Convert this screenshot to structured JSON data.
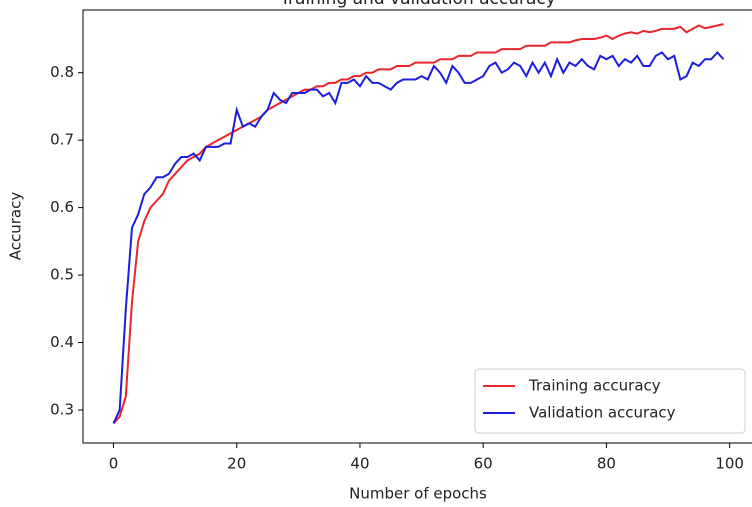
{
  "chart_data": {
    "type": "line",
    "title": "Training and validation accuracy",
    "x_label": "Number of epochs",
    "y_label": "Accuracy",
    "x": [
      0,
      1,
      2,
      3,
      4,
      5,
      6,
      7,
      8,
      9,
      10,
      11,
      12,
      13,
      14,
      15,
      16,
      17,
      18,
      19,
      20,
      21,
      22,
      23,
      24,
      25,
      26,
      27,
      28,
      29,
      30,
      31,
      32,
      33,
      34,
      35,
      36,
      37,
      38,
      39,
      40,
      41,
      42,
      43,
      44,
      45,
      46,
      47,
      48,
      49,
      50,
      51,
      52,
      53,
      54,
      55,
      56,
      57,
      58,
      59,
      60,
      61,
      62,
      63,
      64,
      65,
      66,
      67,
      68,
      69,
      70,
      71,
      72,
      73,
      74,
      75,
      76,
      77,
      78,
      79,
      80,
      81,
      82,
      83,
      84,
      85,
      86,
      87,
      88,
      89,
      90,
      91,
      92,
      93,
      94,
      95,
      96,
      97,
      98,
      99
    ],
    "series": [
      {
        "name": "Training accuracy",
        "color": "#e8262c",
        "values": [
          0.28,
          0.29,
          0.32,
          0.46,
          0.55,
          0.58,
          0.6,
          0.61,
          0.62,
          0.64,
          0.65,
          0.66,
          0.67,
          0.675,
          0.68,
          0.69,
          0.695,
          0.7,
          0.705,
          0.71,
          0.715,
          0.72,
          0.725,
          0.73,
          0.735,
          0.745,
          0.75,
          0.755,
          0.76,
          0.765,
          0.77,
          0.775,
          0.775,
          0.78,
          0.78,
          0.785,
          0.785,
          0.79,
          0.79,
          0.795,
          0.795,
          0.8,
          0.8,
          0.805,
          0.805,
          0.805,
          0.81,
          0.81,
          0.81,
          0.815,
          0.815,
          0.815,
          0.815,
          0.82,
          0.82,
          0.82,
          0.825,
          0.825,
          0.825,
          0.83,
          0.83,
          0.83,
          0.83,
          0.835,
          0.835,
          0.835,
          0.835,
          0.84,
          0.84,
          0.84,
          0.84,
          0.845,
          0.845,
          0.845,
          0.845,
          0.848,
          0.85,
          0.85,
          0.85,
          0.852,
          0.855,
          0.85,
          0.855,
          0.858,
          0.86,
          0.858,
          0.862,
          0.86,
          0.862,
          0.865,
          0.865,
          0.865,
          0.868,
          0.86,
          0.865,
          0.87,
          0.866,
          0.868,
          0.87,
          0.872
        ]
      },
      {
        "name": "Validation accuracy",
        "color": "#1d1ddb",
        "values": [
          0.28,
          0.3,
          0.45,
          0.57,
          0.59,
          0.62,
          0.63,
          0.645,
          0.645,
          0.65,
          0.665,
          0.675,
          0.675,
          0.68,
          0.67,
          0.69,
          0.69,
          0.69,
          0.695,
          0.695,
          0.745,
          0.72,
          0.725,
          0.72,
          0.735,
          0.745,
          0.77,
          0.76,
          0.755,
          0.77,
          0.77,
          0.77,
          0.775,
          0.775,
          0.765,
          0.77,
          0.755,
          0.785,
          0.785,
          0.79,
          0.78,
          0.795,
          0.785,
          0.785,
          0.78,
          0.775,
          0.785,
          0.79,
          0.79,
          0.79,
          0.795,
          0.79,
          0.81,
          0.8,
          0.785,
          0.81,
          0.8,
          0.785,
          0.785,
          0.79,
          0.795,
          0.81,
          0.815,
          0.8,
          0.805,
          0.815,
          0.81,
          0.795,
          0.815,
          0.8,
          0.815,
          0.795,
          0.82,
          0.8,
          0.815,
          0.81,
          0.82,
          0.81,
          0.805,
          0.825,
          0.82,
          0.825,
          0.81,
          0.82,
          0.815,
          0.825,
          0.81,
          0.81,
          0.825,
          0.83,
          0.82,
          0.825,
          0.79,
          0.795,
          0.815,
          0.81,
          0.82,
          0.82,
          0.83,
          0.82
        ]
      }
    ],
    "xlim": [
      -4.95,
      103.95
    ],
    "xticks": [
      0,
      20,
      40,
      60,
      80,
      100
    ],
    "ylim": [
      0.251,
      0.893
    ],
    "yticks": [
      0.3,
      0.4,
      0.5,
      0.6,
      0.7,
      0.8
    ],
    "legend": "lower right"
  }
}
